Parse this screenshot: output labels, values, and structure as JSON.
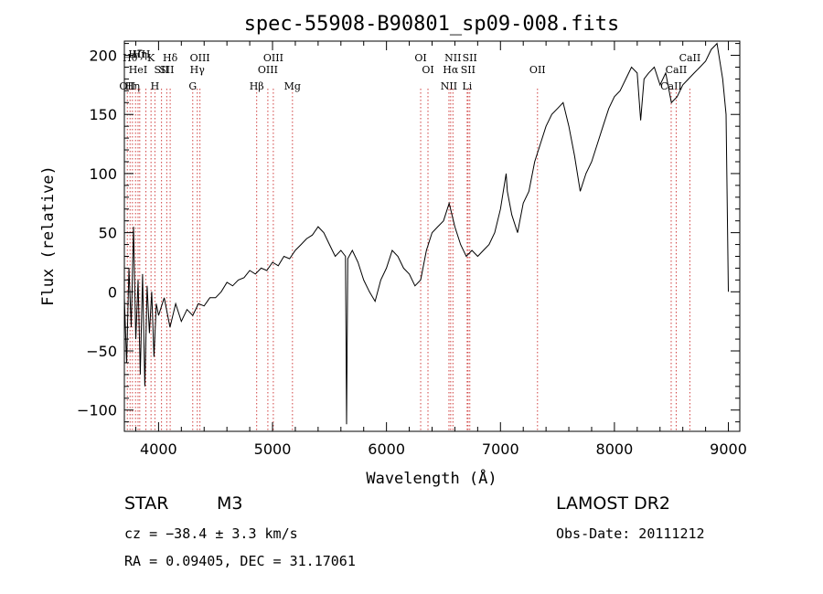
{
  "chart_data": {
    "type": "line",
    "title": "spec-55908-B90801_sp09-008.fits",
    "xlabel": "Wavelength (Å)",
    "ylabel": "Flux (relative)",
    "xlim": [
      3700,
      9100
    ],
    "ylim": [
      -118,
      212
    ],
    "x_ticks": [
      4000,
      5000,
      6000,
      7000,
      8000,
      9000
    ],
    "y_ticks": [
      -100,
      -50,
      0,
      50,
      100,
      150,
      200
    ],
    "grid": false,
    "series": [
      {
        "x": [
          3700,
          3720,
          3740,
          3760,
          3780,
          3800,
          3820,
          3840,
          3860,
          3880,
          3900,
          3920,
          3940,
          3960,
          3980,
          4000,
          4050,
          4100,
          4150,
          4200,
          4250,
          4300,
          4350,
          4400,
          4450,
          4500,
          4550,
          4600,
          4650,
          4700,
          4750,
          4800,
          4850,
          4900,
          4950,
          5000,
          5050,
          5100,
          5150,
          5200,
          5250,
          5300,
          5350,
          5400,
          5450,
          5500,
          5550,
          5600,
          5640,
          5650,
          5660,
          5700,
          5750,
          5800,
          5850,
          5900,
          5950,
          6000,
          6050,
          6100,
          6150,
          6200,
          6250,
          6300,
          6350,
          6400,
          6450,
          6500,
          6550,
          6600,
          6650,
          6700,
          6750,
          6800,
          6850,
          6900,
          6950,
          7000,
          7050,
          7060,
          7100,
          7150,
          7200,
          7250,
          7300,
          7350,
          7400,
          7450,
          7500,
          7550,
          7600,
          7650,
          7700,
          7750,
          7800,
          7850,
          7900,
          7950,
          8000,
          8050,
          8100,
          8150,
          8200,
          8230,
          8260,
          8300,
          8350,
          8400,
          8450,
          8500,
          8550,
          8600,
          8650,
          8700,
          8750,
          8800,
          8850,
          8900,
          8950,
          8980,
          9000
        ],
        "values": [
          -5,
          -60,
          20,
          -30,
          55,
          -40,
          10,
          -70,
          15,
          -80,
          5,
          -35,
          0,
          -55,
          -10,
          -20,
          -5,
          -30,
          -10,
          -25,
          -15,
          -20,
          -10,
          -12,
          -5,
          -5,
          0,
          8,
          5,
          10,
          12,
          18,
          15,
          20,
          18,
          25,
          22,
          30,
          28,
          35,
          40,
          45,
          48,
          55,
          50,
          40,
          30,
          35,
          30,
          -112,
          28,
          35,
          25,
          10,
          0,
          -8,
          10,
          20,
          35,
          30,
          20,
          15,
          5,
          10,
          35,
          50,
          55,
          60,
          75,
          55,
          40,
          30,
          35,
          30,
          35,
          40,
          50,
          70,
          100,
          85,
          65,
          50,
          75,
          85,
          110,
          125,
          140,
          150,
          155,
          160,
          140,
          115,
          85,
          100,
          110,
          125,
          140,
          155,
          165,
          170,
          180,
          190,
          185,
          145,
          180,
          185,
          190,
          175,
          185,
          160,
          165,
          175,
          180,
          185,
          190,
          195,
          205,
          210,
          180,
          150,
          0
        ]
      }
    ],
    "line_markers": [
      {
        "wl": 3726,
        "label": "OII",
        "row": 3
      },
      {
        "wl": 3750,
        "label": "Hθ",
        "row": 1
      },
      {
        "wl": 3771,
        "label": "Hη",
        "row": 3
      },
      {
        "wl": 3798,
        "label": "Hζ",
        "row": 0
      },
      {
        "wl": 3820,
        "label": "HeI",
        "row": 2
      },
      {
        "wl": 3835,
        "label": "Hη",
        "row": 0
      },
      {
        "wl": 3889,
        "label": "H",
        "row": 0
      },
      {
        "wl": 3934,
        "label": "K",
        "row": 1
      },
      {
        "wl": 3968,
        "label": "H",
        "row": 3
      },
      {
        "wl": 4026,
        "label": "SII",
        "row": 2
      },
      {
        "wl": 4072,
        "label": "SII",
        "row": 2
      },
      {
        "wl": 4102,
        "label": "Hδ",
        "row": 1
      },
      {
        "wl": 4300,
        "label": "G",
        "row": 3
      },
      {
        "wl": 4340,
        "label": "Hγ",
        "row": 2
      },
      {
        "wl": 4363,
        "label": "OIII",
        "row": 1
      },
      {
        "wl": 4861,
        "label": "Hβ",
        "row": 3
      },
      {
        "wl": 4959,
        "label": "OIII",
        "row": 2
      },
      {
        "wl": 5007,
        "label": "OIII",
        "row": 1
      },
      {
        "wl": 5175,
        "label": "Mg",
        "row": 3
      },
      {
        "wl": 6300,
        "label": "OI",
        "row": 1
      },
      {
        "wl": 6364,
        "label": "OI",
        "row": 2
      },
      {
        "wl": 6548,
        "label": "NII",
        "row": 3
      },
      {
        "wl": 6563,
        "label": "Hα",
        "row": 2
      },
      {
        "wl": 6583,
        "label": "NII",
        "row": 1
      },
      {
        "wl": 6708,
        "label": "Li",
        "row": 3
      },
      {
        "wl": 6716,
        "label": "SII",
        "row": 2
      },
      {
        "wl": 6731,
        "label": "SII",
        "row": 1
      },
      {
        "wl": 7325,
        "label": "OII",
        "row": 2
      },
      {
        "wl": 8498,
        "label": "CaII",
        "row": 3
      },
      {
        "wl": 8542,
        "label": "CaII",
        "row": 2
      },
      {
        "wl": 8662,
        "label": "CaII",
        "row": 1
      }
    ]
  },
  "info": {
    "class_label": "STAR",
    "subclass": "M3",
    "survey": "LAMOST DR2",
    "cz": "cz = −38.4 ± 3.3 km/s",
    "obs_date": "Obs-Date: 20111212",
    "coords": "RA =   0.09405, DEC =  31.17061"
  },
  "colors": {
    "spectrum": "#000000",
    "marker_line": "#d04040",
    "axis": "#000000"
  }
}
